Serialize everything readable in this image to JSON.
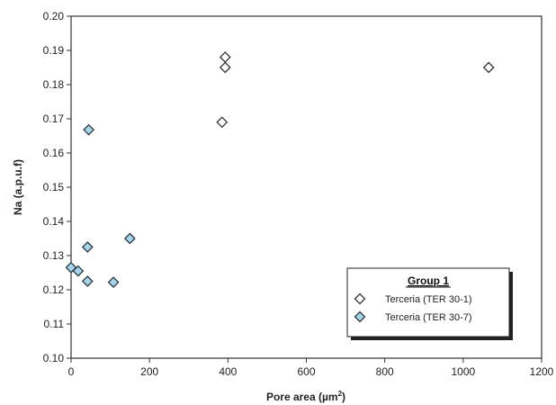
{
  "chart_data": {
    "type": "scatter",
    "xlabel": "Pore area (µm",
    "xlabel_sup": "2",
    "xlabel_close": ")",
    "ylabel": "Na (a.p.u.f)",
    "xlim": [
      0,
      1200
    ],
    "ylim": [
      0.1,
      0.2
    ],
    "xticks": [
      0,
      200,
      400,
      600,
      800,
      1000,
      1200
    ],
    "xtick_labels": [
      "0",
      "200",
      "400",
      "600",
      "800",
      "1000",
      "1200"
    ],
    "yticks": [
      0.1,
      0.11,
      0.12,
      0.13,
      0.14,
      0.15,
      0.16,
      0.17,
      0.18,
      0.19,
      0.2
    ],
    "ytick_labels": [
      "0.10",
      "0.11",
      "0.12",
      "0.13",
      "0.14",
      "0.15",
      "0.16",
      "0.17",
      "0.18",
      "0.19",
      "0.20"
    ],
    "grid": false,
    "legend": {
      "title": "Group 1",
      "placement": "bottom-right"
    },
    "series": [
      {
        "name": "Terceria (TER 30-1)",
        "marker": "diamond-open",
        "color": "#ffffff",
        "stroke": "#333333",
        "points": [
          {
            "x": 385,
            "y": 0.169
          },
          {
            "x": 393,
            "y": 0.188
          },
          {
            "x": 393,
            "y": 0.185
          },
          {
            "x": 1065,
            "y": 0.185
          }
        ]
      },
      {
        "name": "Terceria (TER 30-7)",
        "marker": "diamond-filled",
        "color": "#a9d3e6",
        "stroke": "#2a3a44",
        "points": [
          {
            "x": 0,
            "y": 0.1265
          },
          {
            "x": 18,
            "y": 0.1255
          },
          {
            "x": 42,
            "y": 0.1225
          },
          {
            "x": 42,
            "y": 0.1325
          },
          {
            "x": 45,
            "y": 0.1668
          },
          {
            "x": 108,
            "y": 0.1222
          },
          {
            "x": 150,
            "y": 0.135
          }
        ]
      }
    ]
  }
}
